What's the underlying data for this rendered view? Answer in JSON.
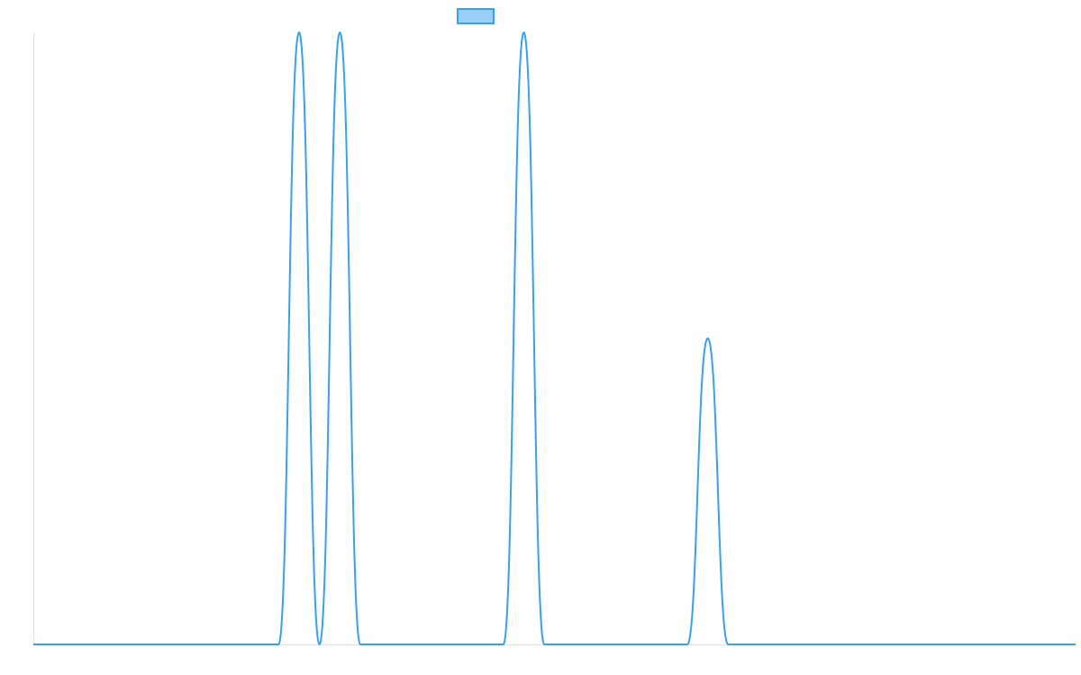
{
  "chart_data": {
    "type": "line",
    "title": "",
    "xlabel": "",
    "ylabel": "",
    "legend": {
      "label": "",
      "placement": "top-center"
    },
    "x": [
      0,
      1,
      2,
      3,
      4,
      5,
      6,
      7,
      8,
      9,
      10,
      11,
      12,
      13,
      14,
      15,
      16,
      17,
      18,
      19,
      20,
      21,
      22,
      23,
      24,
      25,
      26,
      27,
      28,
      29,
      30,
      31,
      32,
      33,
      34,
      35,
      36,
      37,
      38,
      39,
      40,
      41,
      42,
      43,
      44,
      45,
      46,
      47,
      48,
      49,
      50,
      51
    ],
    "series": [
      {
        "name": "",
        "color": "#36a2eb",
        "fill": "#9ad0f5",
        "values": [
          0,
          0,
          0,
          0,
          0,
          0,
          0,
          0,
          0,
          0,
          0,
          0,
          0,
          1,
          0,
          1,
          0,
          0,
          0,
          0,
          0,
          0,
          0,
          0,
          1,
          0,
          0,
          0,
          0,
          0,
          0,
          0,
          0,
          0.5,
          0,
          0,
          0,
          0,
          0,
          0,
          0,
          0,
          0,
          0,
          0,
          0,
          0,
          0,
          0,
          0,
          0,
          0
        ]
      }
    ],
    "xlim": [
      0,
      51
    ],
    "ylim": [
      0,
      1
    ],
    "grid": false
  }
}
